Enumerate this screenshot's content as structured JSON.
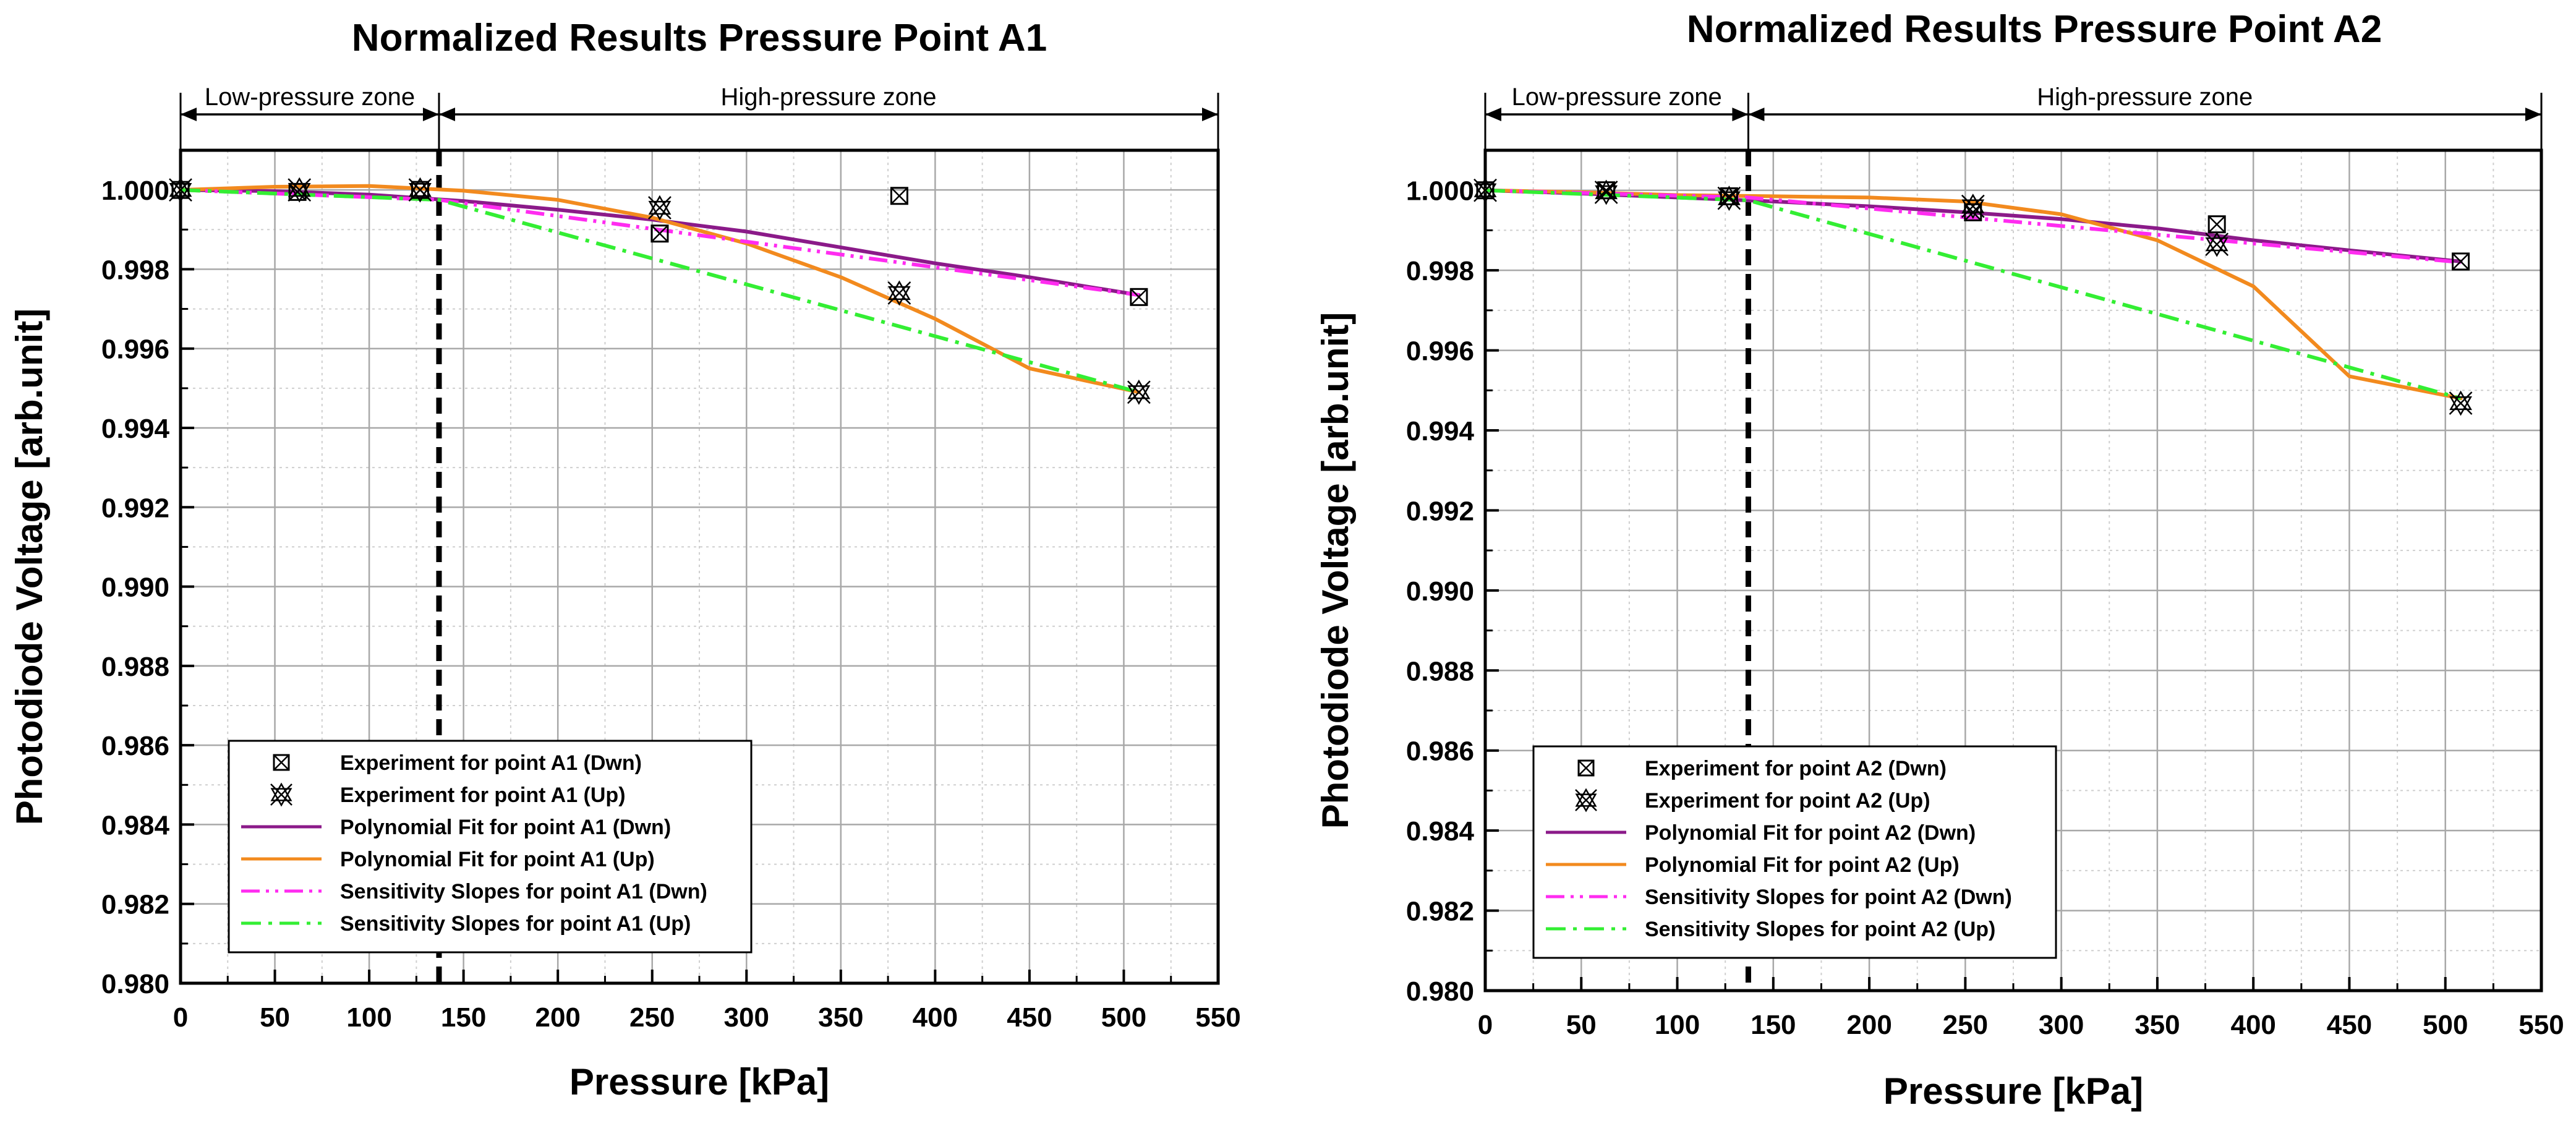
{
  "chart_data": [
    {
      "type": "scatter",
      "title": "Normalized Results Pressure Point A1",
      "xlabel": "Pressure [kPa]",
      "ylabel": "Photodiode Voltage [arb.unit]",
      "xlim": [
        0,
        550
      ],
      "ylim": [
        0.98,
        1.001
      ],
      "xticks": [
        0,
        50,
        100,
        150,
        200,
        250,
        300,
        350,
        400,
        450,
        500,
        550
      ],
      "xtick_labels": [
        "0",
        "50",
        "100",
        "150",
        "200",
        "250",
        "300",
        "350",
        "400",
        "450",
        "500",
        "550"
      ],
      "yticks": [
        0.98,
        0.982,
        0.984,
        0.986,
        0.988,
        0.99,
        0.992,
        0.994,
        0.996,
        0.998,
        1.0
      ],
      "ytick_labels": [
        "0.980",
        "0.982",
        "0.984",
        "0.986",
        "0.988",
        "0.990",
        "0.992",
        "0.994",
        "0.996",
        "0.998",
        "1.000"
      ],
      "grid": true,
      "zone_boundary_x": 137,
      "zones": [
        {
          "label": "Low-pressure zone",
          "x_range": [
            0,
            137
          ]
        },
        {
          "label": "High-pressure zone",
          "x_range": [
            137,
            550
          ]
        }
      ],
      "legend_position": "bottom-left",
      "series": [
        {
          "name": "Experiment for point A1 (Dwn)",
          "kind": "marker-box",
          "color": "#000000",
          "points": [
            [
              0,
              1.0
            ],
            [
              62,
              0.99995
            ],
            [
              127,
              1.0
            ],
            [
              254,
              0.9989
            ],
            [
              381,
              0.99985
            ],
            [
              508,
              0.9973
            ]
          ]
        },
        {
          "name": "Experiment for point A1 (Up)",
          "kind": "marker-star",
          "color": "#000000",
          "points": [
            [
              0,
              1.0
            ],
            [
              63,
              1.0
            ],
            [
              127,
              1.0
            ],
            [
              254,
              0.99955
            ],
            [
              381,
              0.9974
            ],
            [
              508,
              0.9949
            ]
          ]
        },
        {
          "name": "Polynomial Fit for point A1 (Dwn)",
          "kind": "line",
          "color": "#8b1a89",
          "points": [
            [
              0,
              1.0
            ],
            [
              50,
              0.99997
            ],
            [
              100,
              0.99988
            ],
            [
              150,
              0.99972
            ],
            [
              200,
              0.9995
            ],
            [
              250,
              0.99925
            ],
            [
              300,
              0.99895
            ],
            [
              350,
              0.99855
            ],
            [
              400,
              0.99815
            ],
            [
              450,
              0.9978
            ],
            [
              508,
              0.99735
            ]
          ]
        },
        {
          "name": "Polynomial Fit for point A1 (Up)",
          "kind": "line",
          "color": "#f28a1e",
          "points": [
            [
              0,
              1.0
            ],
            [
              50,
              1.00008
            ],
            [
              100,
              1.0001
            ],
            [
              150,
              0.99998
            ],
            [
              200,
              0.99975
            ],
            [
              250,
              0.9993
            ],
            [
              300,
              0.99865
            ],
            [
              350,
              0.9978
            ],
            [
              400,
              0.99675
            ],
            [
              450,
              0.9955
            ],
            [
              508,
              0.9949
            ]
          ]
        },
        {
          "name": "Sensitivity Slopes for point A1 (Dwn)",
          "kind": "dashdotdot",
          "color": "#ff2cf0",
          "points": [
            [
              0,
              1.0
            ],
            [
              137,
              0.99975
            ],
            [
              508,
              0.99735
            ]
          ]
        },
        {
          "name": "Sensitivity Slopes for point A1 (Up)",
          "kind": "dashdot",
          "color": "#33ee33",
          "points": [
            [
              0,
              1.0
            ],
            [
              137,
              0.99975
            ],
            [
              508,
              0.9949
            ]
          ]
        }
      ]
    },
    {
      "type": "scatter",
      "title": "Normalized Results Pressure Point A2",
      "xlabel": "Pressure [kPa]",
      "ylabel": "Photodiode Voltage [arb.unit]",
      "xlim": [
        0,
        550
      ],
      "ylim": [
        0.98,
        1.001
      ],
      "xticks": [
        0,
        50,
        100,
        150,
        200,
        250,
        300,
        350,
        400,
        450,
        500,
        550
      ],
      "xtick_labels": [
        "0",
        "50",
        "100",
        "150",
        "200",
        "250",
        "300",
        "350",
        "400",
        "450",
        "500",
        "550"
      ],
      "yticks": [
        0.98,
        0.982,
        0.984,
        0.986,
        0.988,
        0.99,
        0.992,
        0.994,
        0.996,
        0.998,
        1.0
      ],
      "ytick_labels": [
        "0.980",
        "0.982",
        "0.984",
        "0.986",
        "0.988",
        "0.990",
        "0.992",
        "0.994",
        "0.996",
        "0.998",
        "1.000"
      ],
      "grid": true,
      "zone_boundary_x": 137,
      "zones": [
        {
          "label": "Low-pressure zone",
          "x_range": [
            0,
            137
          ]
        },
        {
          "label": "High-pressure zone",
          "x_range": [
            137,
            550
          ]
        }
      ],
      "legend_position": "bottom-left",
      "series": [
        {
          "name": "Experiment for point A2 (Dwn)",
          "kind": "marker-box",
          "color": "#000000",
          "points": [
            [
              0,
              1.0
            ],
            [
              63,
              1.0
            ],
            [
              127,
              0.99985
            ],
            [
              254,
              0.99945
            ],
            [
              381,
              0.99915
            ],
            [
              508,
              0.99822
            ]
          ]
        },
        {
          "name": "Experiment for point A2 (Up)",
          "kind": "marker-star",
          "color": "#000000",
          "points": [
            [
              0,
              1.0
            ],
            [
              63,
              0.99995
            ],
            [
              127,
              0.9998
            ],
            [
              254,
              0.9996
            ],
            [
              381,
              0.99865
            ],
            [
              508,
              0.99468
            ]
          ]
        },
        {
          "name": "Polynomial Fit for point A2 (Dwn)",
          "kind": "line",
          "color": "#8b1a89",
          "points": [
            [
              0,
              1.0
            ],
            [
              50,
              0.99992
            ],
            [
              100,
              0.99982
            ],
            [
              150,
              0.99972
            ],
            [
              200,
              0.9996
            ],
            [
              250,
              0.99945
            ],
            [
              300,
              0.99928
            ],
            [
              350,
              0.99905
            ],
            [
              400,
              0.99875
            ],
            [
              450,
              0.9985
            ],
            [
              508,
              0.99822
            ]
          ]
        },
        {
          "name": "Polynomial Fit for point A2 (Up)",
          "kind": "line",
          "color": "#f28a1e",
          "points": [
            [
              0,
              1.0
            ],
            [
              50,
              0.99995
            ],
            [
              100,
              0.99988
            ],
            [
              150,
              0.99985
            ],
            [
              200,
              0.99982
            ],
            [
              250,
              0.99972
            ],
            [
              300,
              0.9994
            ],
            [
              350,
              0.99875
            ],
            [
              400,
              0.9976
            ],
            [
              450,
              0.99535
            ],
            [
              508,
              0.9948
            ]
          ]
        },
        {
          "name": "Sensitivity Slopes for point A2 (Dwn)",
          "kind": "dashdotdot",
          "color": "#ff2cf0",
          "points": [
            [
              0,
              1.0
            ],
            [
              137,
              0.99982
            ],
            [
              508,
              0.9982
            ]
          ]
        },
        {
          "name": "Sensitivity Slopes for point A2 (Up)",
          "kind": "dashdot",
          "color": "#33ee33",
          "points": [
            [
              0,
              1.0
            ],
            [
              137,
              0.99975
            ],
            [
              508,
              0.9948
            ]
          ]
        }
      ]
    }
  ]
}
